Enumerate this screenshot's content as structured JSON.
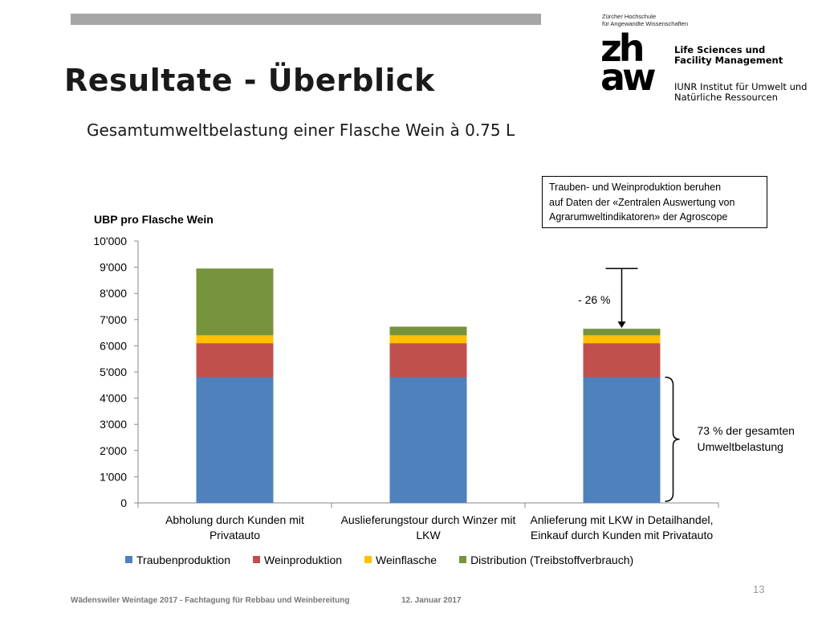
{
  "slide": {
    "title": "Resultate - Überblick",
    "subtitle": "Gesamtumweltbelastung einer Flasche Wein à 0.75 L",
    "page_number": "13",
    "footer_text": "Wädenswiler Weintage 2017 - Fachtagung für Rebbau und Weinbereitung",
    "footer_date": "12. Januar 2017"
  },
  "logo": {
    "school_line1": "Zürcher Hochschule",
    "school_line2": "für Angewandte Wissenschaften",
    "mark_line1": "zh",
    "mark_line2": "aw",
    "dept_line1": "Life Sciences und",
    "dept_line2": "Facility Management",
    "inst_line1": "IUNR Institut für Umwelt und",
    "inst_line2": "Natürliche Ressourcen"
  },
  "note": {
    "line1": "Trauben- und Weinproduktion beruhen",
    "line2": "auf Daten der «Zentralen Auswertung von",
    "line3": "Agrarumweltindikatoren» der Agroscope"
  },
  "annotations": {
    "reduction": "- 26 %",
    "share_line1": "73 % der gesamten",
    "share_line2": "Umweltbelastung"
  },
  "chart_data": {
    "type": "bar",
    "stacked": true,
    "ylabel": "UBP pro Flasche Wein",
    "ylim": [
      0,
      10000
    ],
    "ytick_labels": [
      "0",
      "1'000",
      "2'000",
      "3'000",
      "4'000",
      "5'000",
      "6'000",
      "7'000",
      "8'000",
      "9'000",
      "10'000"
    ],
    "categories": [
      [
        "Abholung durch Kunden mit",
        "Privatauto"
      ],
      [
        "Auslieferungstour durch Winzer mit",
        "LKW"
      ],
      [
        "Anlieferung mit LKW in Detailhandel,",
        "Einkauf durch Kunden mit Privatauto"
      ]
    ],
    "series": [
      {
        "name": "Traubenproduktion",
        "color": "#4f81bd",
        "values": [
          4800,
          4800,
          4800
        ]
      },
      {
        "name": "Weinproduktion",
        "color": "#c0504d",
        "values": [
          1300,
          1300,
          1300
        ]
      },
      {
        "name": "Weinflasche",
        "color": "#ffc000",
        "values": [
          300,
          300,
          300
        ]
      },
      {
        "name": "Distribution (Treibstoffverbrauch)",
        "color": "#77933c",
        "values": [
          2550,
          330,
          250
        ]
      }
    ],
    "grid": false,
    "legend": "bottom"
  }
}
